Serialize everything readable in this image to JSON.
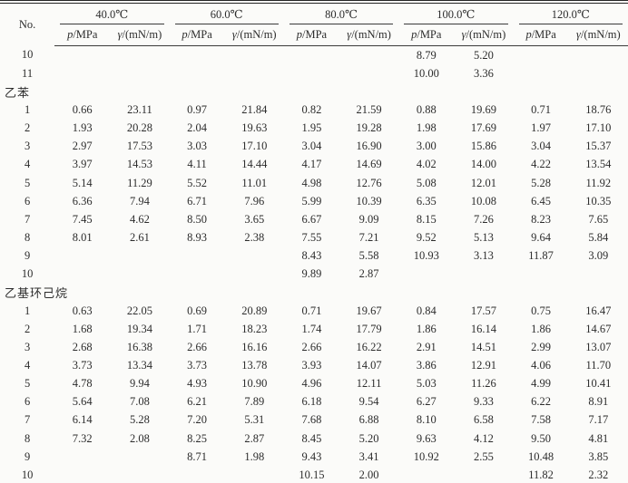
{
  "page": {
    "background": "#fbfbf9",
    "text_color": "#2c2c2c",
    "rule_color": "#3a3a3a"
  },
  "table": {
    "no_header": "No.",
    "temp_groups": [
      "40.0℃",
      "60.0℃",
      "80.0℃",
      "100.0℃",
      "120.0℃"
    ],
    "sub_headers": {
      "p_symbol": "p",
      "p_rest": "/MPa",
      "gamma_symbol": "γ",
      "gamma_rest": "/(mN/m)"
    },
    "rows": [
      {
        "no": "10",
        "values": [
          "",
          "",
          "",
          "",
          "",
          "",
          "8.79",
          "5.20",
          "",
          ""
        ]
      },
      {
        "no": "11",
        "values": [
          "",
          "",
          "",
          "",
          "",
          "",
          "10.00",
          "3.36",
          "",
          ""
        ]
      },
      {
        "section": "乙苯"
      },
      {
        "no": "1",
        "values": [
          "0.66",
          "23.11",
          "0.97",
          "21.84",
          "0.82",
          "21.59",
          "0.88",
          "19.69",
          "0.71",
          "18.76"
        ]
      },
      {
        "no": "2",
        "values": [
          "1.93",
          "20.28",
          "2.04",
          "19.63",
          "1.95",
          "19.28",
          "1.98",
          "17.69",
          "1.97",
          "17.10"
        ]
      },
      {
        "no": "3",
        "values": [
          "2.97",
          "17.53",
          "3.03",
          "17.10",
          "3.04",
          "16.90",
          "3.00",
          "15.86",
          "3.04",
          "15.37"
        ]
      },
      {
        "no": "4",
        "values": [
          "3.97",
          "14.53",
          "4.11",
          "14.44",
          "4.17",
          "14.69",
          "4.02",
          "14.00",
          "4.22",
          "13.54"
        ]
      },
      {
        "no": "5",
        "values": [
          "5.14",
          "11.29",
          "5.52",
          "11.01",
          "4.98",
          "12.76",
          "5.08",
          "12.01",
          "5.28",
          "11.92"
        ]
      },
      {
        "no": "6",
        "values": [
          "6.36",
          "7.94",
          "6.71",
          "7.96",
          "5.99",
          "10.39",
          "6.35",
          "10.08",
          "6.45",
          "10.35"
        ]
      },
      {
        "no": "7",
        "values": [
          "7.45",
          "4.62",
          "8.50",
          "3.65",
          "6.67",
          "9.09",
          "8.15",
          "7.26",
          "8.23",
          "7.65"
        ]
      },
      {
        "no": "8",
        "values": [
          "8.01",
          "2.61",
          "8.93",
          "2.38",
          "7.55",
          "7.21",
          "9.52",
          "5.13",
          "9.64",
          "5.84"
        ]
      },
      {
        "no": "9",
        "values": [
          "",
          "",
          "",
          "",
          "8.43",
          "5.58",
          "10.93",
          "3.13",
          "11.87",
          "3.09"
        ]
      },
      {
        "no": "10",
        "values": [
          "",
          "",
          "",
          "",
          "9.89",
          "2.87",
          "",
          "",
          "",
          ""
        ]
      },
      {
        "section": "乙基环己烷"
      },
      {
        "no": "1",
        "values": [
          "0.63",
          "22.05",
          "0.69",
          "20.89",
          "0.71",
          "19.67",
          "0.84",
          "17.57",
          "0.75",
          "16.47"
        ]
      },
      {
        "no": "2",
        "values": [
          "1.68",
          "19.34",
          "1.71",
          "18.23",
          "1.74",
          "17.79",
          "1.86",
          "16.14",
          "1.86",
          "14.67"
        ]
      },
      {
        "no": "3",
        "values": [
          "2.68",
          "16.38",
          "2.66",
          "16.16",
          "2.66",
          "16.22",
          "2.91",
          "14.51",
          "2.99",
          "13.07"
        ]
      },
      {
        "no": "4",
        "values": [
          "3.73",
          "13.34",
          "3.73",
          "13.78",
          "3.93",
          "14.07",
          "3.86",
          "12.91",
          "4.06",
          "11.70"
        ]
      },
      {
        "no": "5",
        "values": [
          "4.78",
          "9.94",
          "4.93",
          "10.90",
          "4.96",
          "12.11",
          "5.03",
          "11.26",
          "4.99",
          "10.41"
        ]
      },
      {
        "no": "6",
        "values": [
          "5.64",
          "7.08",
          "6.21",
          "7.89",
          "6.18",
          "9.54",
          "6.27",
          "9.33",
          "6.22",
          "8.91"
        ]
      },
      {
        "no": "7",
        "values": [
          "6.14",
          "5.28",
          "7.20",
          "5.31",
          "7.68",
          "6.88",
          "8.10",
          "6.58",
          "7.58",
          "7.17"
        ]
      },
      {
        "no": "8",
        "values": [
          "7.32",
          "2.08",
          "8.25",
          "2.87",
          "8.45",
          "5.20",
          "9.63",
          "4.12",
          "9.50",
          "4.81"
        ]
      },
      {
        "no": "9",
        "values": [
          "",
          "",
          "8.71",
          "1.98",
          "9.43",
          "3.41",
          "10.92",
          "2.55",
          "10.48",
          "3.85"
        ]
      },
      {
        "no": "10",
        "values": [
          "",
          "",
          "",
          "",
          "10.15",
          "2.00",
          "",
          "",
          "11.82",
          "2.32"
        ]
      }
    ]
  }
}
